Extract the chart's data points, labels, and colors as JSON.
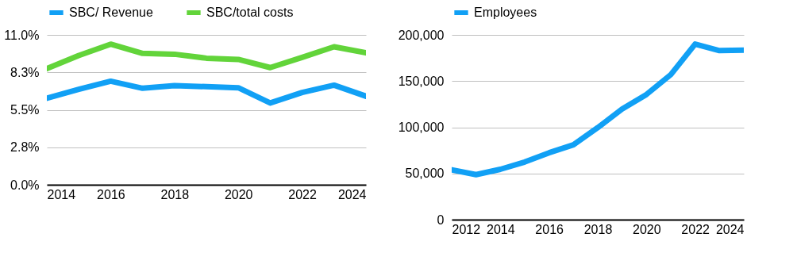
{
  "chart_data": [
    {
      "type": "line",
      "x": [
        2014,
        2015,
        2016,
        2017,
        2018,
        2019,
        2020,
        2021,
        2022,
        2023,
        2024
      ],
      "series": [
        {
          "name": "SBC/ Revenue",
          "color": "#11a0f5",
          "values": [
            6.35,
            7.0,
            7.6,
            7.08,
            7.27,
            7.2,
            7.12,
            6.0,
            6.77,
            7.31,
            6.5
          ]
        },
        {
          "name": "SBC/total costs",
          "color": "#62d43a",
          "values": [
            8.53,
            9.49,
            10.32,
            9.64,
            9.58,
            9.29,
            9.2,
            8.6,
            9.35,
            10.13,
            9.68
          ]
        }
      ],
      "xlim": [
        2014,
        2024
      ],
      "xticks": [
        2014,
        2016,
        2018,
        2020,
        2022,
        2024
      ],
      "ylim": [
        0,
        11
      ],
      "yticks": [
        {
          "value": 0,
          "label": "0.0%"
        },
        {
          "value": 2.75,
          "label": "2.8%"
        },
        {
          "value": 5.5,
          "label": "5.5%"
        },
        {
          "value": 8.25,
          "label": "8.3%"
        },
        {
          "value": 11,
          "label": "11.0%"
        }
      ],
      "grid": "y",
      "legend": "top"
    },
    {
      "type": "line",
      "x": [
        2012,
        2013,
        2014,
        2015,
        2016,
        2017,
        2018,
        2019,
        2020,
        2021,
        2022,
        2023,
        2024
      ],
      "series": [
        {
          "name": "Employees",
          "color": "#11a0f5",
          "values": [
            54000,
            48700,
            54500,
            62400,
            72400,
            81000,
            99600,
            119700,
            135500,
            157000,
            190000,
            183000,
            183500
          ]
        }
      ],
      "xlim": [
        2012,
        2024
      ],
      "xticks": [
        2012,
        2014,
        2016,
        2018,
        2020,
        2022,
        2024
      ],
      "ylim": [
        0,
        200000
      ],
      "yticks": [
        0,
        {
          "value": 50000,
          "label": "50,000"
        },
        {
          "value": 100000,
          "label": "100,000"
        },
        {
          "value": 150000,
          "label": "150,000"
        },
        {
          "value": 200000,
          "label": "200,000"
        }
      ],
      "grid": "y",
      "legend": "top"
    }
  ]
}
